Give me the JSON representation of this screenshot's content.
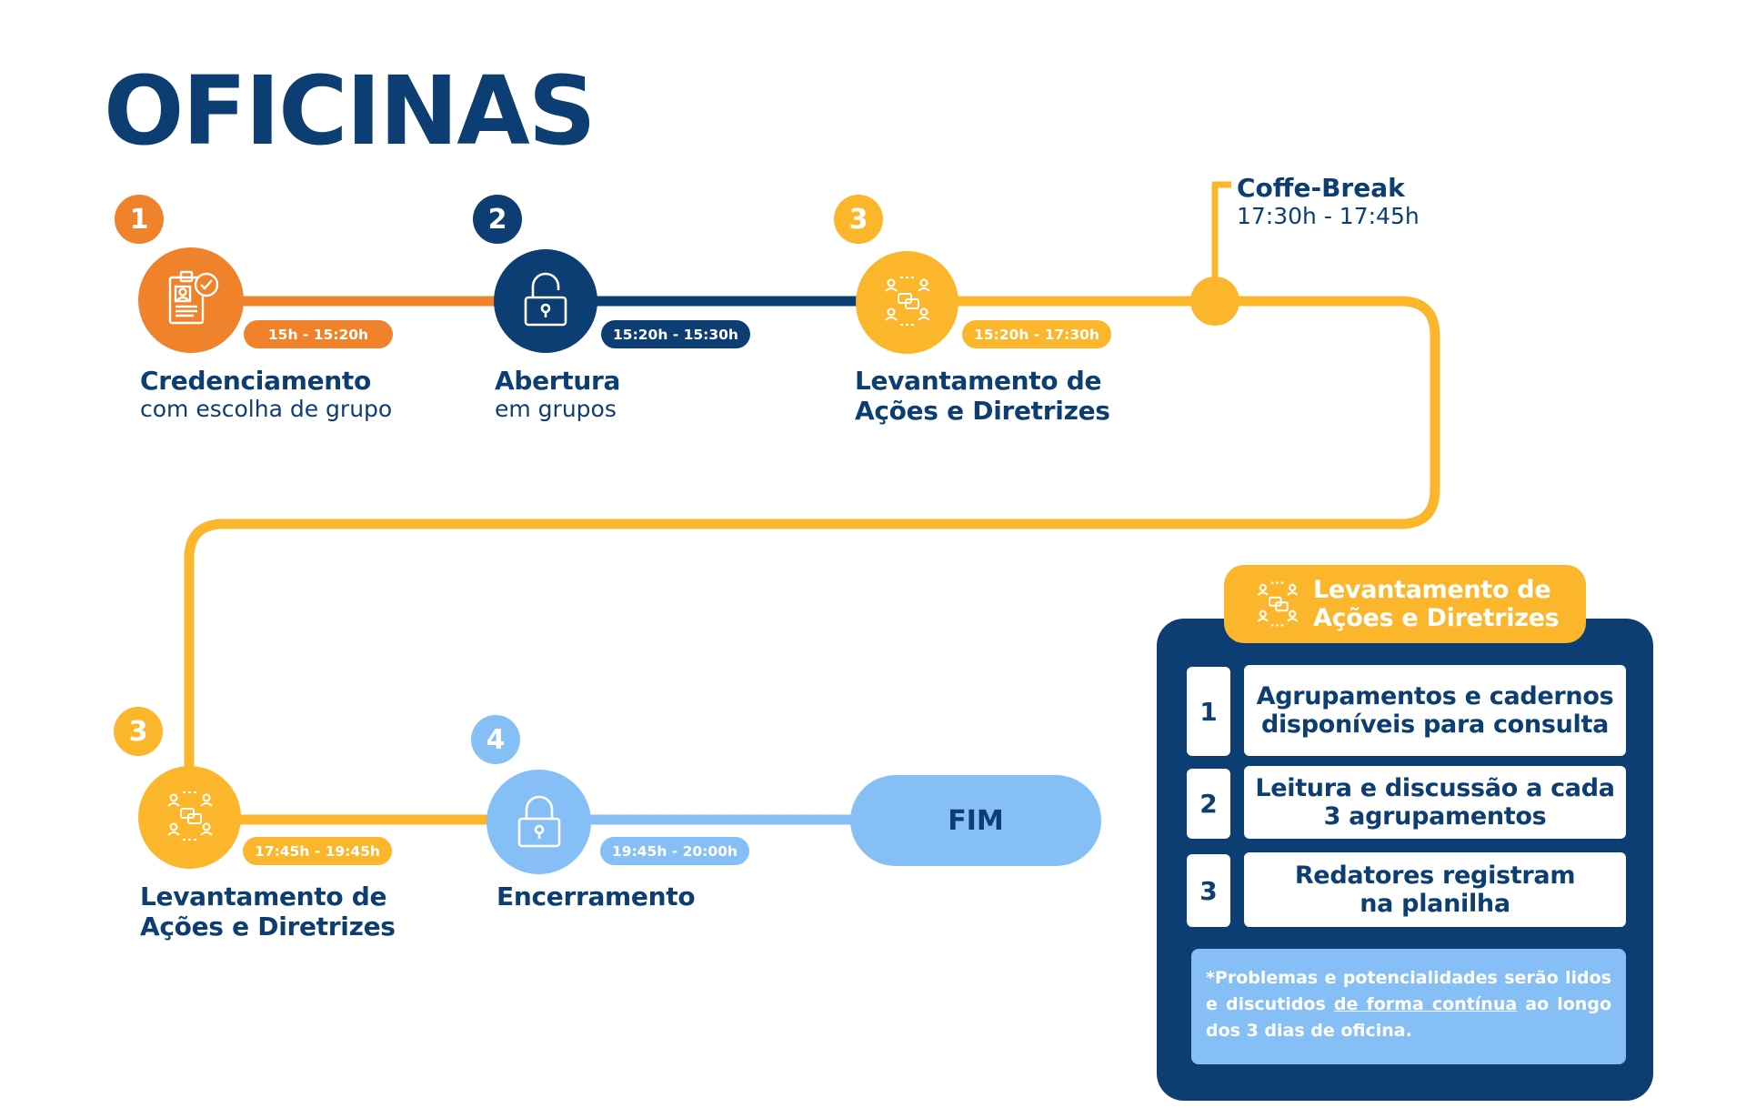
{
  "title": "OFICINAS",
  "colors": {
    "orange": "#f0822b",
    "navy": "#0c3e73",
    "yellow": "#fbb62c",
    "light_blue": "#86bff5",
    "white": "#ffffff"
  },
  "steps": [
    {
      "number": "1",
      "icon": "badge-check-icon",
      "time": "15h - 15:20h",
      "title": "Credenciamento",
      "subtitle": "com escolha de grupo"
    },
    {
      "number": "2",
      "icon": "open-lock-icon",
      "time": "15:20h - 15:30h",
      "title": "Abertura",
      "subtitle": "em grupos"
    },
    {
      "number": "3",
      "icon": "group-discussion-icon",
      "time": "15:20h - 17:30h",
      "title_line1": "Levantamento de",
      "title_line2": "Ações e Diretrizes"
    },
    {
      "number": "3",
      "icon": "group-discussion-icon",
      "time": "17:45h - 19:45h",
      "title_line1": "Levantamento de",
      "title_line2": "Ações e Diretrizes"
    },
    {
      "number": "4",
      "icon": "closed-lock-icon",
      "time": "19:45h - 20:00h",
      "title": "Encerramento"
    }
  ],
  "coffee_break": {
    "title": "Coffe-Break",
    "time": "17:30h - 17:45h"
  },
  "end_label": "FIM",
  "panel": {
    "header_line1": "Levantamento de",
    "header_line2": "Ações e Diretrizes",
    "header_icon": "group-discussion-icon",
    "items": [
      {
        "number": "1",
        "line1": "Agrupamentos e cadernos",
        "line2": "disponíveis para consulta"
      },
      {
        "number": "2",
        "line1": "Leitura e discussão a cada",
        "line2": "3 agrupamentos"
      },
      {
        "number": "3",
        "line1": "Redatores registram",
        "line2": "na planilha"
      }
    ],
    "note_before": "*Problemas e potencialidades serão lidos e discutidos ",
    "note_link": "de forma contínua",
    "note_after": " ao longo dos 3 dias de oficina."
  }
}
